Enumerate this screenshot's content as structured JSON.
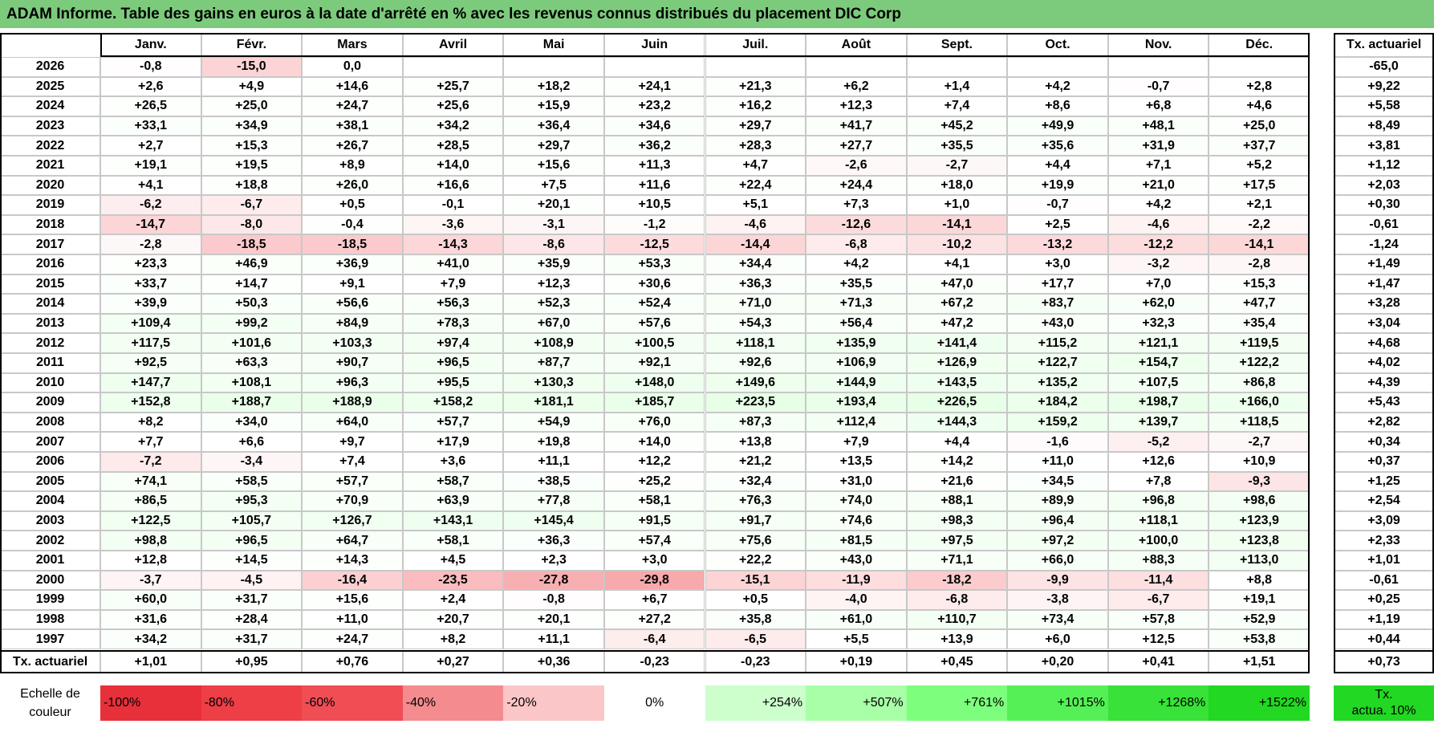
{
  "title": "ADAM Informe. Table des gains en euros à la date d'arrêté en % avec les revenus connus distribués du placement DIC Corp",
  "columns": [
    "Janv.",
    "Févr.",
    "Mars",
    "Avril",
    "Mai",
    "Juin",
    "Juil.",
    "Août",
    "Sept.",
    "Oct.",
    "Nov.",
    "Déc."
  ],
  "total_column": "Tx. actuariel",
  "rows": [
    {
      "year": "2026",
      "months": [
        "-0,8",
        "-15,0",
        "0,0"
      ],
      "total": "-65,0"
    },
    {
      "year": "2025",
      "months": [
        "+2,6",
        "+4,9",
        "+14,6",
        "+25,7",
        "+18,2",
        "+24,1",
        "+21,3",
        "+6,2",
        "+1,4",
        "+4,2",
        "-0,7",
        "+2,8"
      ],
      "total": "+9,22"
    },
    {
      "year": "2024",
      "months": [
        "+26,5",
        "+25,0",
        "+24,7",
        "+25,6",
        "+15,9",
        "+23,2",
        "+16,2",
        "+12,3",
        "+7,4",
        "+8,6",
        "+6,8",
        "+4,6"
      ],
      "total": "+5,58"
    },
    {
      "year": "2023",
      "months": [
        "+33,1",
        "+34,9",
        "+38,1",
        "+34,2",
        "+36,4",
        "+34,6",
        "+29,7",
        "+41,7",
        "+45,2",
        "+49,9",
        "+48,1",
        "+25,0"
      ],
      "total": "+8,49"
    },
    {
      "year": "2022",
      "months": [
        "+2,7",
        "+15,3",
        "+26,7",
        "+28,5",
        "+29,7",
        "+36,2",
        "+28,3",
        "+27,7",
        "+35,5",
        "+35,6",
        "+31,9",
        "+37,7"
      ],
      "total": "+3,81"
    },
    {
      "year": "2021",
      "months": [
        "+19,1",
        "+19,5",
        "+8,9",
        "+14,0",
        "+15,6",
        "+11,3",
        "+4,7",
        "-2,6",
        "-2,7",
        "+4,4",
        "+7,1",
        "+5,2"
      ],
      "total": "+1,12"
    },
    {
      "year": "2020",
      "months": [
        "+4,1",
        "+18,8",
        "+26,0",
        "+16,6",
        "+7,5",
        "+11,6",
        "+22,4",
        "+24,4",
        "+18,0",
        "+19,9",
        "+21,0",
        "+17,5"
      ],
      "total": "+2,03"
    },
    {
      "year": "2019",
      "months": [
        "-6,2",
        "-6,7",
        "+0,5",
        "-0,1",
        "+20,1",
        "+10,5",
        "+5,1",
        "+7,3",
        "+1,0",
        "-0,7",
        "+4,2",
        "+2,1"
      ],
      "total": "+0,30"
    },
    {
      "year": "2018",
      "months": [
        "-14,7",
        "-8,0",
        "-0,4",
        "-3,6",
        "-3,1",
        "-1,2",
        "-4,6",
        "-12,6",
        "-14,1",
        "+2,5",
        "-4,6",
        "-2,2"
      ],
      "total": "-0,61"
    },
    {
      "year": "2017",
      "months": [
        "-2,8",
        "-18,5",
        "-18,5",
        "-14,3",
        "-8,6",
        "-12,5",
        "-14,4",
        "-6,8",
        "-10,2",
        "-13,2",
        "-12,2",
        "-14,1"
      ],
      "total": "-1,24"
    },
    {
      "year": "2016",
      "months": [
        "+23,3",
        "+46,9",
        "+36,9",
        "+41,0",
        "+35,9",
        "+53,3",
        "+34,4",
        "+4,2",
        "+4,1",
        "+3,0",
        "-3,2",
        "-2,8"
      ],
      "total": "+1,49"
    },
    {
      "year": "2015",
      "months": [
        "+33,7",
        "+14,7",
        "+9,1",
        "+7,9",
        "+12,3",
        "+30,6",
        "+36,3",
        "+35,5",
        "+47,0",
        "+17,7",
        "+7,0",
        "+15,3"
      ],
      "total": "+1,47"
    },
    {
      "year": "2014",
      "months": [
        "+39,9",
        "+50,3",
        "+56,6",
        "+56,3",
        "+52,3",
        "+52,4",
        "+71,0",
        "+71,3",
        "+67,2",
        "+83,7",
        "+62,0",
        "+47,7"
      ],
      "total": "+3,28"
    },
    {
      "year": "2013",
      "months": [
        "+109,4",
        "+99,2",
        "+84,9",
        "+78,3",
        "+67,0",
        "+57,6",
        "+54,3",
        "+56,4",
        "+47,2",
        "+43,0",
        "+32,3",
        "+35,4"
      ],
      "total": "+3,04"
    },
    {
      "year": "2012",
      "months": [
        "+117,5",
        "+101,6",
        "+103,3",
        "+97,4",
        "+108,9",
        "+100,5",
        "+118,1",
        "+135,9",
        "+141,4",
        "+115,2",
        "+121,1",
        "+119,5"
      ],
      "total": "+4,68"
    },
    {
      "year": "2011",
      "months": [
        "+92,5",
        "+63,3",
        "+90,7",
        "+96,5",
        "+87,7",
        "+92,1",
        "+92,6",
        "+106,9",
        "+126,9",
        "+122,7",
        "+154,7",
        "+122,2"
      ],
      "total": "+4,02"
    },
    {
      "year": "2010",
      "months": [
        "+147,7",
        "+108,1",
        "+96,3",
        "+95,5",
        "+130,3",
        "+148,0",
        "+149,6",
        "+144,9",
        "+143,5",
        "+135,2",
        "+107,5",
        "+86,8"
      ],
      "total": "+4,39"
    },
    {
      "year": "2009",
      "months": [
        "+152,8",
        "+188,7",
        "+188,9",
        "+158,2",
        "+181,1",
        "+185,7",
        "+223,5",
        "+193,4",
        "+226,5",
        "+184,2",
        "+198,7",
        "+166,0"
      ],
      "total": "+5,43"
    },
    {
      "year": "2008",
      "months": [
        "+8,2",
        "+34,0",
        "+64,0",
        "+57,7",
        "+54,9",
        "+76,0",
        "+87,3",
        "+112,4",
        "+144,3",
        "+159,2",
        "+139,7",
        "+118,5"
      ],
      "total": "+2,82"
    },
    {
      "year": "2007",
      "months": [
        "+7,7",
        "+6,6",
        "+9,7",
        "+17,9",
        "+19,8",
        "+14,0",
        "+13,8",
        "+7,9",
        "+4,4",
        "-1,6",
        "-5,2",
        "-2,7"
      ],
      "total": "+0,34"
    },
    {
      "year": "2006",
      "months": [
        "-7,2",
        "-3,4",
        "+7,4",
        "+3,6",
        "+11,1",
        "+12,2",
        "+21,2",
        "+13,5",
        "+14,2",
        "+11,0",
        "+12,6",
        "+10,9"
      ],
      "total": "+0,37"
    },
    {
      "year": "2005",
      "months": [
        "+74,1",
        "+58,5",
        "+57,7",
        "+58,7",
        "+38,5",
        "+25,2",
        "+32,4",
        "+31,0",
        "+21,6",
        "+34,5",
        "+7,8",
        "-9,3"
      ],
      "total": "+1,25"
    },
    {
      "year": "2004",
      "months": [
        "+86,5",
        "+95,3",
        "+70,9",
        "+63,9",
        "+77,8",
        "+58,1",
        "+76,3",
        "+74,0",
        "+88,1",
        "+89,9",
        "+96,8",
        "+98,6"
      ],
      "total": "+2,54"
    },
    {
      "year": "2003",
      "months": [
        "+122,5",
        "+105,7",
        "+126,7",
        "+143,1",
        "+145,4",
        "+91,5",
        "+91,7",
        "+74,6",
        "+98,3",
        "+96,4",
        "+118,1",
        "+123,9"
      ],
      "total": "+3,09"
    },
    {
      "year": "2002",
      "months": [
        "+98,8",
        "+96,5",
        "+64,7",
        "+58,1",
        "+36,3",
        "+57,4",
        "+75,6",
        "+81,5",
        "+97,5",
        "+97,2",
        "+100,0",
        "+123,8"
      ],
      "total": "+2,33"
    },
    {
      "year": "2001",
      "months": [
        "+12,8",
        "+14,5",
        "+14,3",
        "+4,5",
        "+2,3",
        "+3,0",
        "+22,2",
        "+43,0",
        "+71,1",
        "+66,0",
        "+88,3",
        "+113,0"
      ],
      "total": "+1,01"
    },
    {
      "year": "2000",
      "months": [
        "-3,7",
        "-4,5",
        "-16,4",
        "-23,5",
        "-27,8",
        "-29,8",
        "-15,1",
        "-11,9",
        "-18,2",
        "-9,9",
        "-11,4",
        "+8,8"
      ],
      "total": "-0,61"
    },
    {
      "year": "1999",
      "months": [
        "+60,0",
        "+31,7",
        "+15,6",
        "+2,4",
        "-0,8",
        "+6,7",
        "+0,5",
        "-4,0",
        "-6,8",
        "-3,8",
        "-6,7",
        "+19,1"
      ],
      "total": "+0,25"
    },
    {
      "year": "1998",
      "months": [
        "+31,6",
        "+28,4",
        "+11,0",
        "+20,7",
        "+20,1",
        "+27,2",
        "+35,8",
        "+61,0",
        "+110,7",
        "+73,4",
        "+57,8",
        "+52,9"
      ],
      "total": "+1,19"
    },
    {
      "year": "1997",
      "months": [
        "+34,2",
        "+31,7",
        "+24,7",
        "+8,2",
        "+11,1",
        "-6,4",
        "-6,5",
        "+5,5",
        "+13,9",
        "+6,0",
        "+12,5",
        "+53,8"
      ],
      "total": "+0,44"
    }
  ],
  "footer": {
    "label": "Tx. actuariel",
    "months": [
      "+1,01",
      "+0,95",
      "+0,76",
      "+0,27",
      "+0,36",
      "-0,23",
      "-0,23",
      "+0,19",
      "+0,45",
      "+0,20",
      "+0,41",
      "+1,51"
    ],
    "total": "+0,73"
  },
  "scale": {
    "label": "Echelle de couleur",
    "steps": [
      {
        "label": "-100%",
        "color": "#e8303a"
      },
      {
        "label": "-80%",
        "color": "#ee3e46"
      },
      {
        "label": "-60%",
        "color": "#f14d55"
      },
      {
        "label": "-40%",
        "color": "#f48b8f"
      },
      {
        "label": "-20%",
        "color": "#fbc6c8"
      },
      {
        "label": "0%",
        "color": "#ffffff"
      },
      {
        "label": "+254%",
        "color": "#ccffcc"
      },
      {
        "label": "+507%",
        "color": "#a8ffa8"
      },
      {
        "label": "+761%",
        "color": "#7dff7d"
      },
      {
        "label": "+1015%",
        "color": "#55f055"
      },
      {
        "label": "+1268%",
        "color": "#38e238"
      },
      {
        "label": "+1522%",
        "color": "#22d822"
      }
    ],
    "target": {
      "lines": [
        "Tx.",
        "actua. 10%"
      ],
      "color": "#22d822"
    }
  }
}
